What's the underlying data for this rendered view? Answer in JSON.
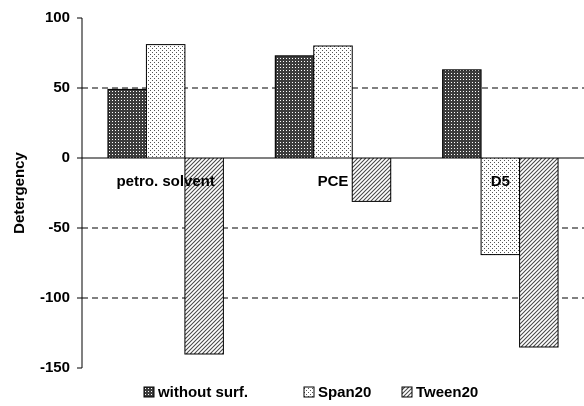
{
  "chart_data": {
    "type": "bar",
    "y_label": "Detergency",
    "categories": [
      "petro. solvent",
      "PCE",
      "D5"
    ],
    "series": [
      {
        "name": "without surf.",
        "color": "#1a1a1a",
        "values": [
          49,
          73,
          63
        ]
      },
      {
        "name": "Span20",
        "color": "#555555",
        "values": [
          81,
          80,
          -69
        ]
      },
      {
        "name": "Tween20",
        "color": "#444444",
        "values": [
          -140,
          -31,
          -135
        ]
      }
    ],
    "ylim": [
      -150,
      100
    ],
    "yticks": [
      -150,
      -100,
      -50,
      0,
      50,
      100
    ],
    "grid": true,
    "legend": "bottom"
  }
}
